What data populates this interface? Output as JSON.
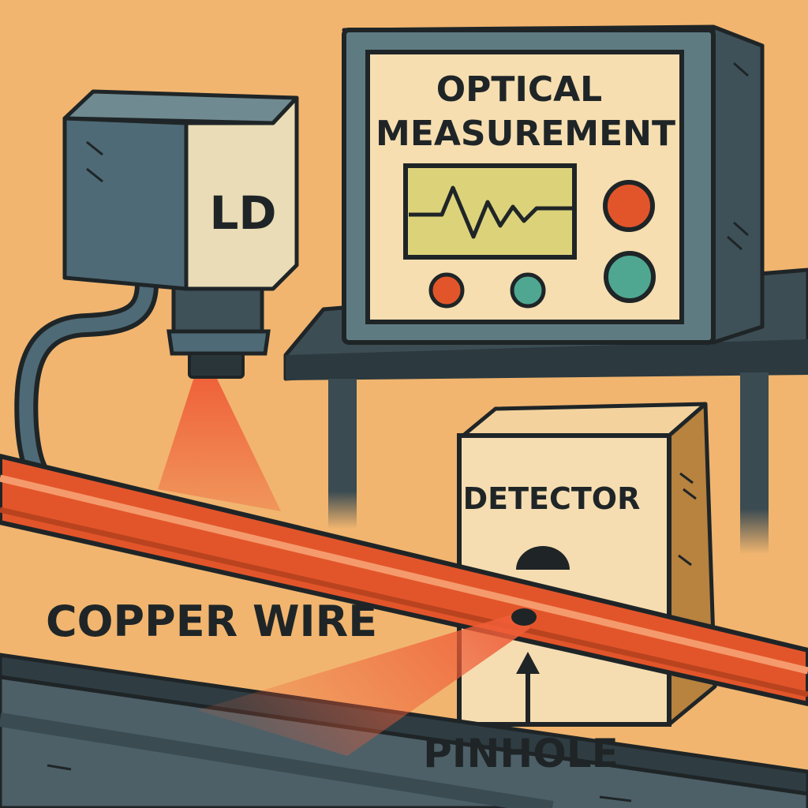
{
  "labels": {
    "instrument_title_line1": "OPTICAL",
    "instrument_title_line2": "MEASUREMENT",
    "laser_diode": "LD",
    "detector": "DETECTOR",
    "copper_wire": "COPPER WIRE",
    "pinhole": "PINHOLE"
  },
  "colors": {
    "background": "#f1b56f",
    "outline": "#1f2527",
    "copper": "#e2552a",
    "copper_highlight": "#f59a6c",
    "laser_beam": "#ef5d37",
    "instrument_body": "#5f7b82",
    "screen_panel": "#f6deb0",
    "display": "#dcd27a",
    "knob_red": "#e2552a",
    "knob_teal": "#4fa792",
    "ld_body": "#4e6a76",
    "ld_face": "#e9dcb6",
    "detector_face": "#f5ddb1",
    "detector_side": "#b8823f",
    "bench": "#3a4b52"
  },
  "icons": [
    "laser-diode-icon",
    "oscilloscope-icon",
    "detector-box-icon",
    "pinhole-icon",
    "arrow-up-icon"
  ]
}
